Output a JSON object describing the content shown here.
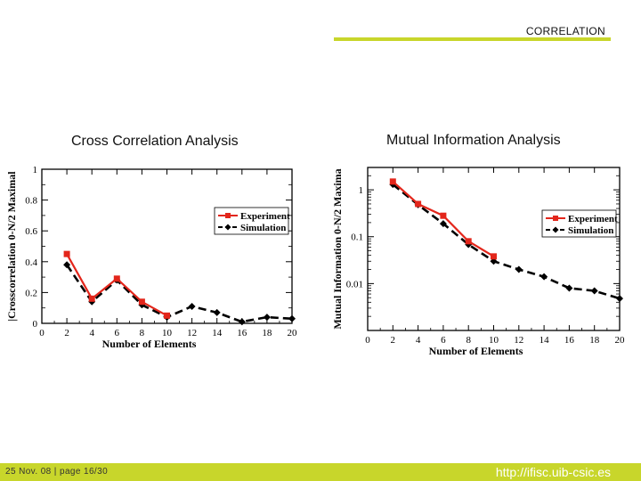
{
  "slide": {
    "section": "CORRELATION",
    "accent_color": "#c8d62b",
    "footer_date_page": "25 Nov. 08  |   page 16/30",
    "footer_url": "http://ifisc.uib-csic.es"
  },
  "chart_data": [
    {
      "type": "line",
      "title": "Cross Correlation Analysis",
      "xlabel": "Number of Elements",
      "ylabel": "|Crosscorrelation 0-N/2 Maximal",
      "xlim": [
        0,
        20
      ],
      "ylim": [
        0,
        1
      ],
      "x_ticks": [
        0,
        2,
        4,
        6,
        8,
        10,
        12,
        14,
        16,
        18,
        20
      ],
      "y_ticks": [
        0,
        0.2,
        0.4,
        0.6,
        0.8,
        1
      ],
      "y_tick_labels": [
        "0",
        "0.2",
        "0.4",
        "0.6",
        "0.8",
        "1"
      ],
      "yscale": "linear",
      "legend_position": "right",
      "series": [
        {
          "name": "Experiment",
          "color": "#e3261b",
          "marker": "square",
          "line": "solid",
          "x": [
            2,
            4,
            6,
            8,
            10
          ],
          "y": [
            0.45,
            0.16,
            0.29,
            0.14,
            0.05
          ]
        },
        {
          "name": "Simulation",
          "color": "#000000",
          "marker": "diamond",
          "line": "dashed",
          "x": [
            2,
            4,
            6,
            8,
            10,
            12,
            14,
            16,
            18,
            20
          ],
          "y": [
            0.38,
            0.14,
            0.28,
            0.12,
            0.04,
            0.11,
            0.07,
            0.01,
            0.04,
            0.03
          ]
        }
      ]
    },
    {
      "type": "line",
      "title": "Mutual Information Analysis",
      "xlabel": "Number of Elements",
      "ylabel": "Mutual Information 0-N/2 Maxima",
      "xlim": [
        0,
        20
      ],
      "ylim": [
        0.001,
        3
      ],
      "x_ticks": [
        0,
        2,
        4,
        6,
        8,
        10,
        12,
        14,
        16,
        18,
        20
      ],
      "y_ticks": [
        0.01,
        0.1,
        1
      ],
      "y_tick_labels": [
        "0.01",
        "0.1",
        "1"
      ],
      "yscale": "log",
      "legend_position": "right",
      "series": [
        {
          "name": "Experiment",
          "color": "#e3261b",
          "marker": "square",
          "line": "solid",
          "x": [
            2,
            4,
            6,
            8,
            10
          ],
          "y": [
            1.5,
            0.5,
            0.28,
            0.08,
            0.038
          ]
        },
        {
          "name": "Simulation",
          "color": "#000000",
          "marker": "diamond",
          "line": "dashed",
          "x": [
            2,
            4,
            6,
            8,
            10,
            12,
            14,
            16,
            18,
            20
          ],
          "y": [
            1.3,
            0.48,
            0.19,
            0.068,
            0.03,
            0.02,
            0.014,
            0.008,
            0.007,
            0.0048
          ]
        }
      ]
    }
  ]
}
